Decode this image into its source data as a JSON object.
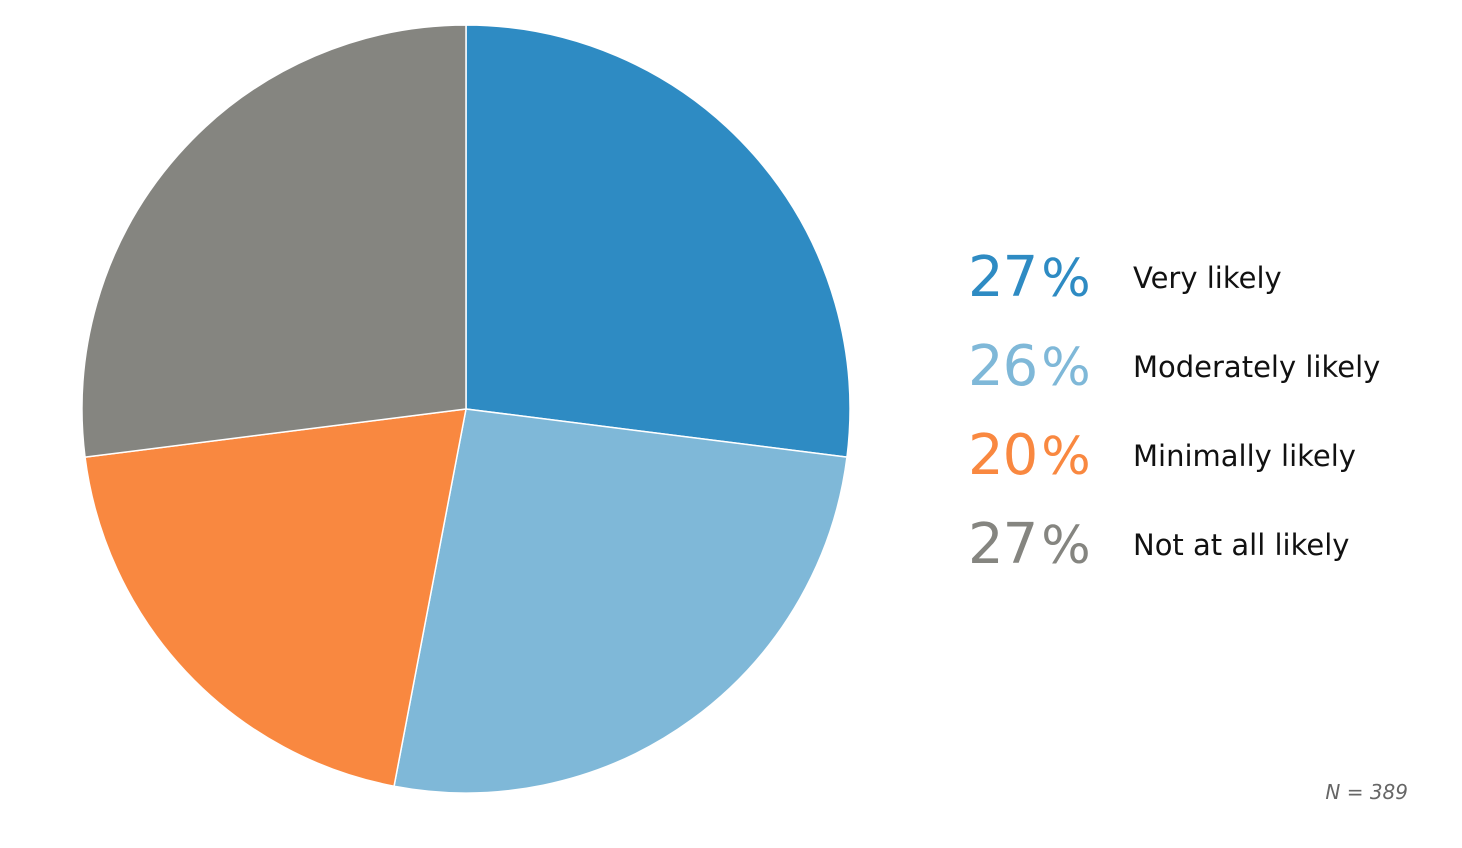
{
  "chart_data": {
    "type": "pie",
    "start_angle": "12 o'clock",
    "direction": "clockwise",
    "slices": [
      {
        "label": "Very likely",
        "value": 27,
        "value_text": "27",
        "color": "#2e8bc3"
      },
      {
        "label": "Moderately likely",
        "value": 26,
        "value_text": "26",
        "color": "#7fb8d8"
      },
      {
        "label": "Minimally likely",
        "value": 20,
        "value_text": "20",
        "color": "#f98840"
      },
      {
        "label": "Not at all likely",
        "value": 27,
        "value_text": "27",
        "color": "#858580"
      }
    ],
    "legend_position": "right",
    "percent_sign": "%",
    "note": "N = 389"
  }
}
